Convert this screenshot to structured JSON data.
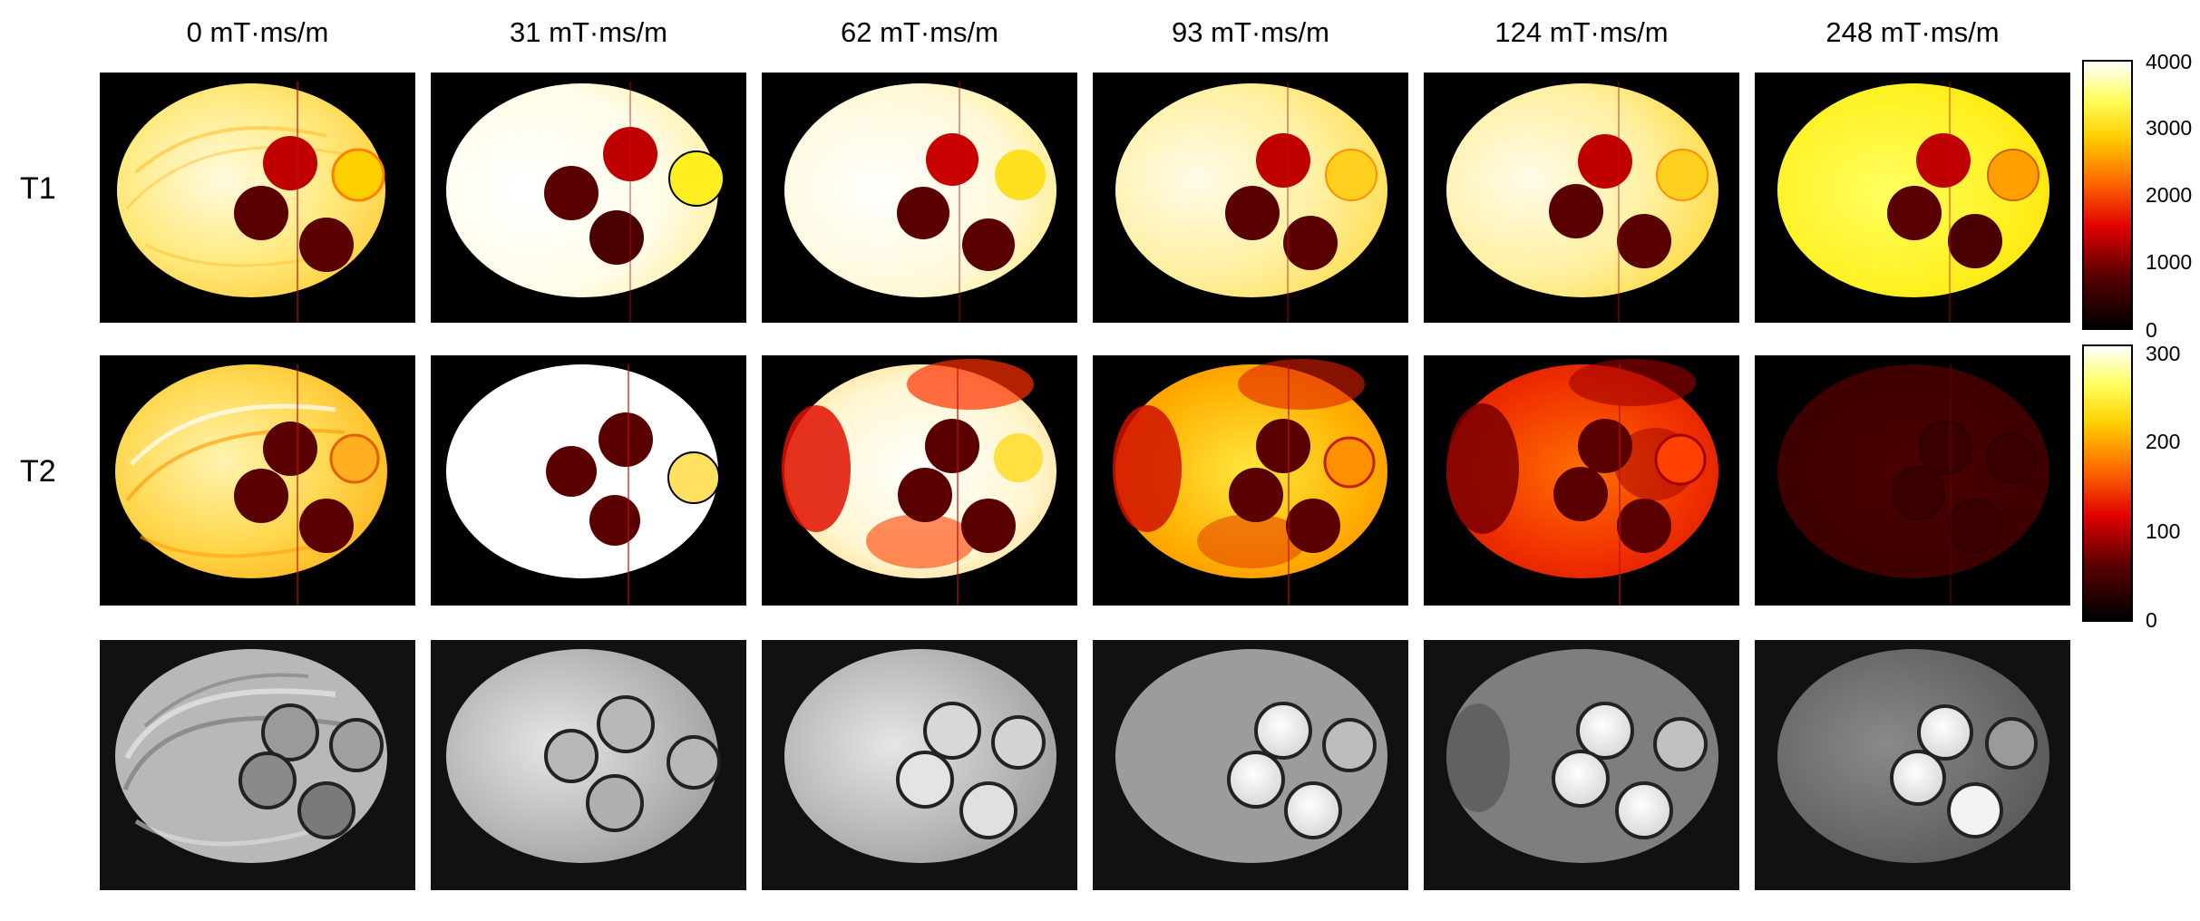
{
  "columns": [
    "0 mT·ms/m",
    "31 mT·ms/m",
    "62 mT·ms/m",
    "93 mT·ms/m",
    "124 mT·ms/m",
    "248 mT·ms/m"
  ],
  "rows": [
    "T1",
    "T2",
    ""
  ],
  "colorbars": {
    "t1": {
      "ticks": [
        "4000",
        "3000",
        "2000",
        "1000",
        "0"
      ],
      "colormap": "hot"
    },
    "t2": {
      "ticks": [
        "300",
        "200",
        "100",
        "0"
      ],
      "colormap": "hot"
    }
  },
  "colors": {
    "background": "#000000",
    "hot_white": "#ffffff",
    "hot_yellow": "#ffff00",
    "hot_orange": "#ff9000",
    "hot_red": "#e00000",
    "hot_darkred": "#5a0000",
    "hot_black": "#0a0000"
  }
}
